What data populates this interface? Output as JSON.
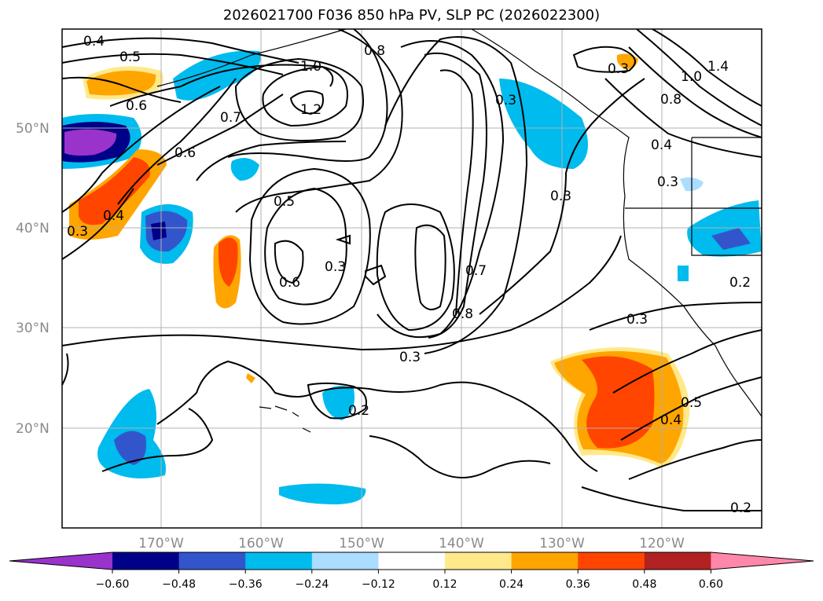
{
  "title": "2026021700 F036 850 hPa PV, SLP PC (2026022300)",
  "map": {
    "lat_labels": [
      "50°N",
      "40°N",
      "30°N",
      "20°N"
    ],
    "lon_labels": [
      "170°W",
      "160°W",
      "150°W",
      "140°W",
      "130°W",
      "120°W"
    ],
    "contour_labels": [
      "0.4",
      "0.5",
      "1.0",
      "0.8",
      "0.6",
      "0.7",
      "1.2",
      "0.6",
      "0.5",
      "0.4",
      "0.3",
      "0.3",
      "0.6",
      "0.3",
      "0.7",
      "0.8",
      "0.3",
      "0.2",
      "0.3",
      "0.5",
      "0.4",
      "0.2",
      "0.3",
      "0.3",
      "0.8",
      "0.4",
      "1.0",
      "1.4",
      "0.2",
      "0.3"
    ]
  },
  "colorbar": {
    "colors": [
      "#9933cc",
      "#000088",
      "#3355cc",
      "#00bbee",
      "#aaddff",
      "#ffffff",
      "#ffe98a",
      "#ffa500",
      "#ff4500",
      "#b22222",
      "#ff88aa"
    ],
    "tick_labels": [
      "−0.60",
      "−0.48",
      "−0.36",
      "−0.24",
      "−0.12",
      "0.12",
      "0.24",
      "0.36",
      "0.48",
      "0.60"
    ]
  }
}
